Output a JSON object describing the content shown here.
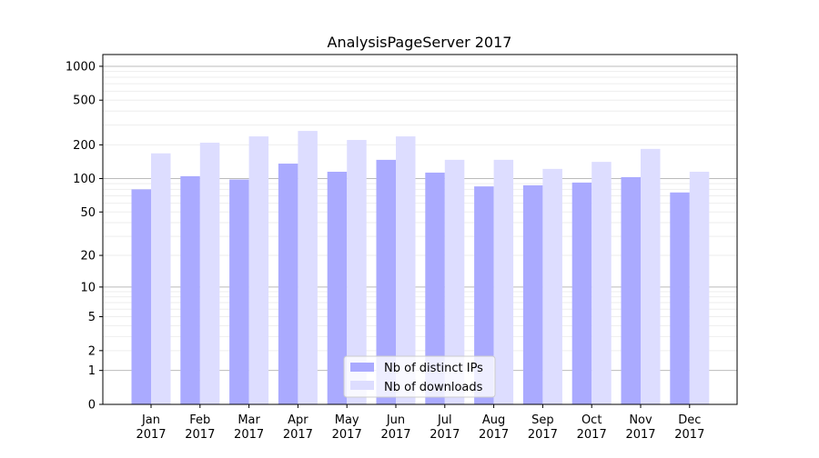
{
  "chart_data": {
    "type": "bar",
    "title": "AnalysisPageServer 2017",
    "xlabel": "",
    "ylabel": "",
    "yscale": "symlog",
    "ylim": [
      0,
      1300
    ],
    "yticks": [
      0,
      1,
      2,
      5,
      10,
      20,
      50,
      100,
      200,
      500,
      1000
    ],
    "grid": true,
    "legend_position": "bottom-center",
    "categories": [
      "Jan\n2017",
      "Feb\n2017",
      "Mar\n2017",
      "Apr\n2017",
      "May\n2017",
      "Jun\n2017",
      "Jul\n2017",
      "Aug\n2017",
      "Sep\n2017",
      "Oct\n2017",
      "Nov\n2017",
      "Dec\n2017"
    ],
    "series": [
      {
        "name": "Nb of distinct IPs",
        "color": "#aaaaff",
        "values": [
          80,
          105,
          98,
          136,
          115,
          147,
          113,
          85,
          87,
          92,
          103,
          75
        ]
      },
      {
        "name": "Nb of downloads",
        "color": "#ddddff",
        "values": [
          168,
          209,
          238,
          266,
          221,
          238,
          147,
          147,
          122,
          141,
          184,
          115
        ]
      }
    ]
  }
}
